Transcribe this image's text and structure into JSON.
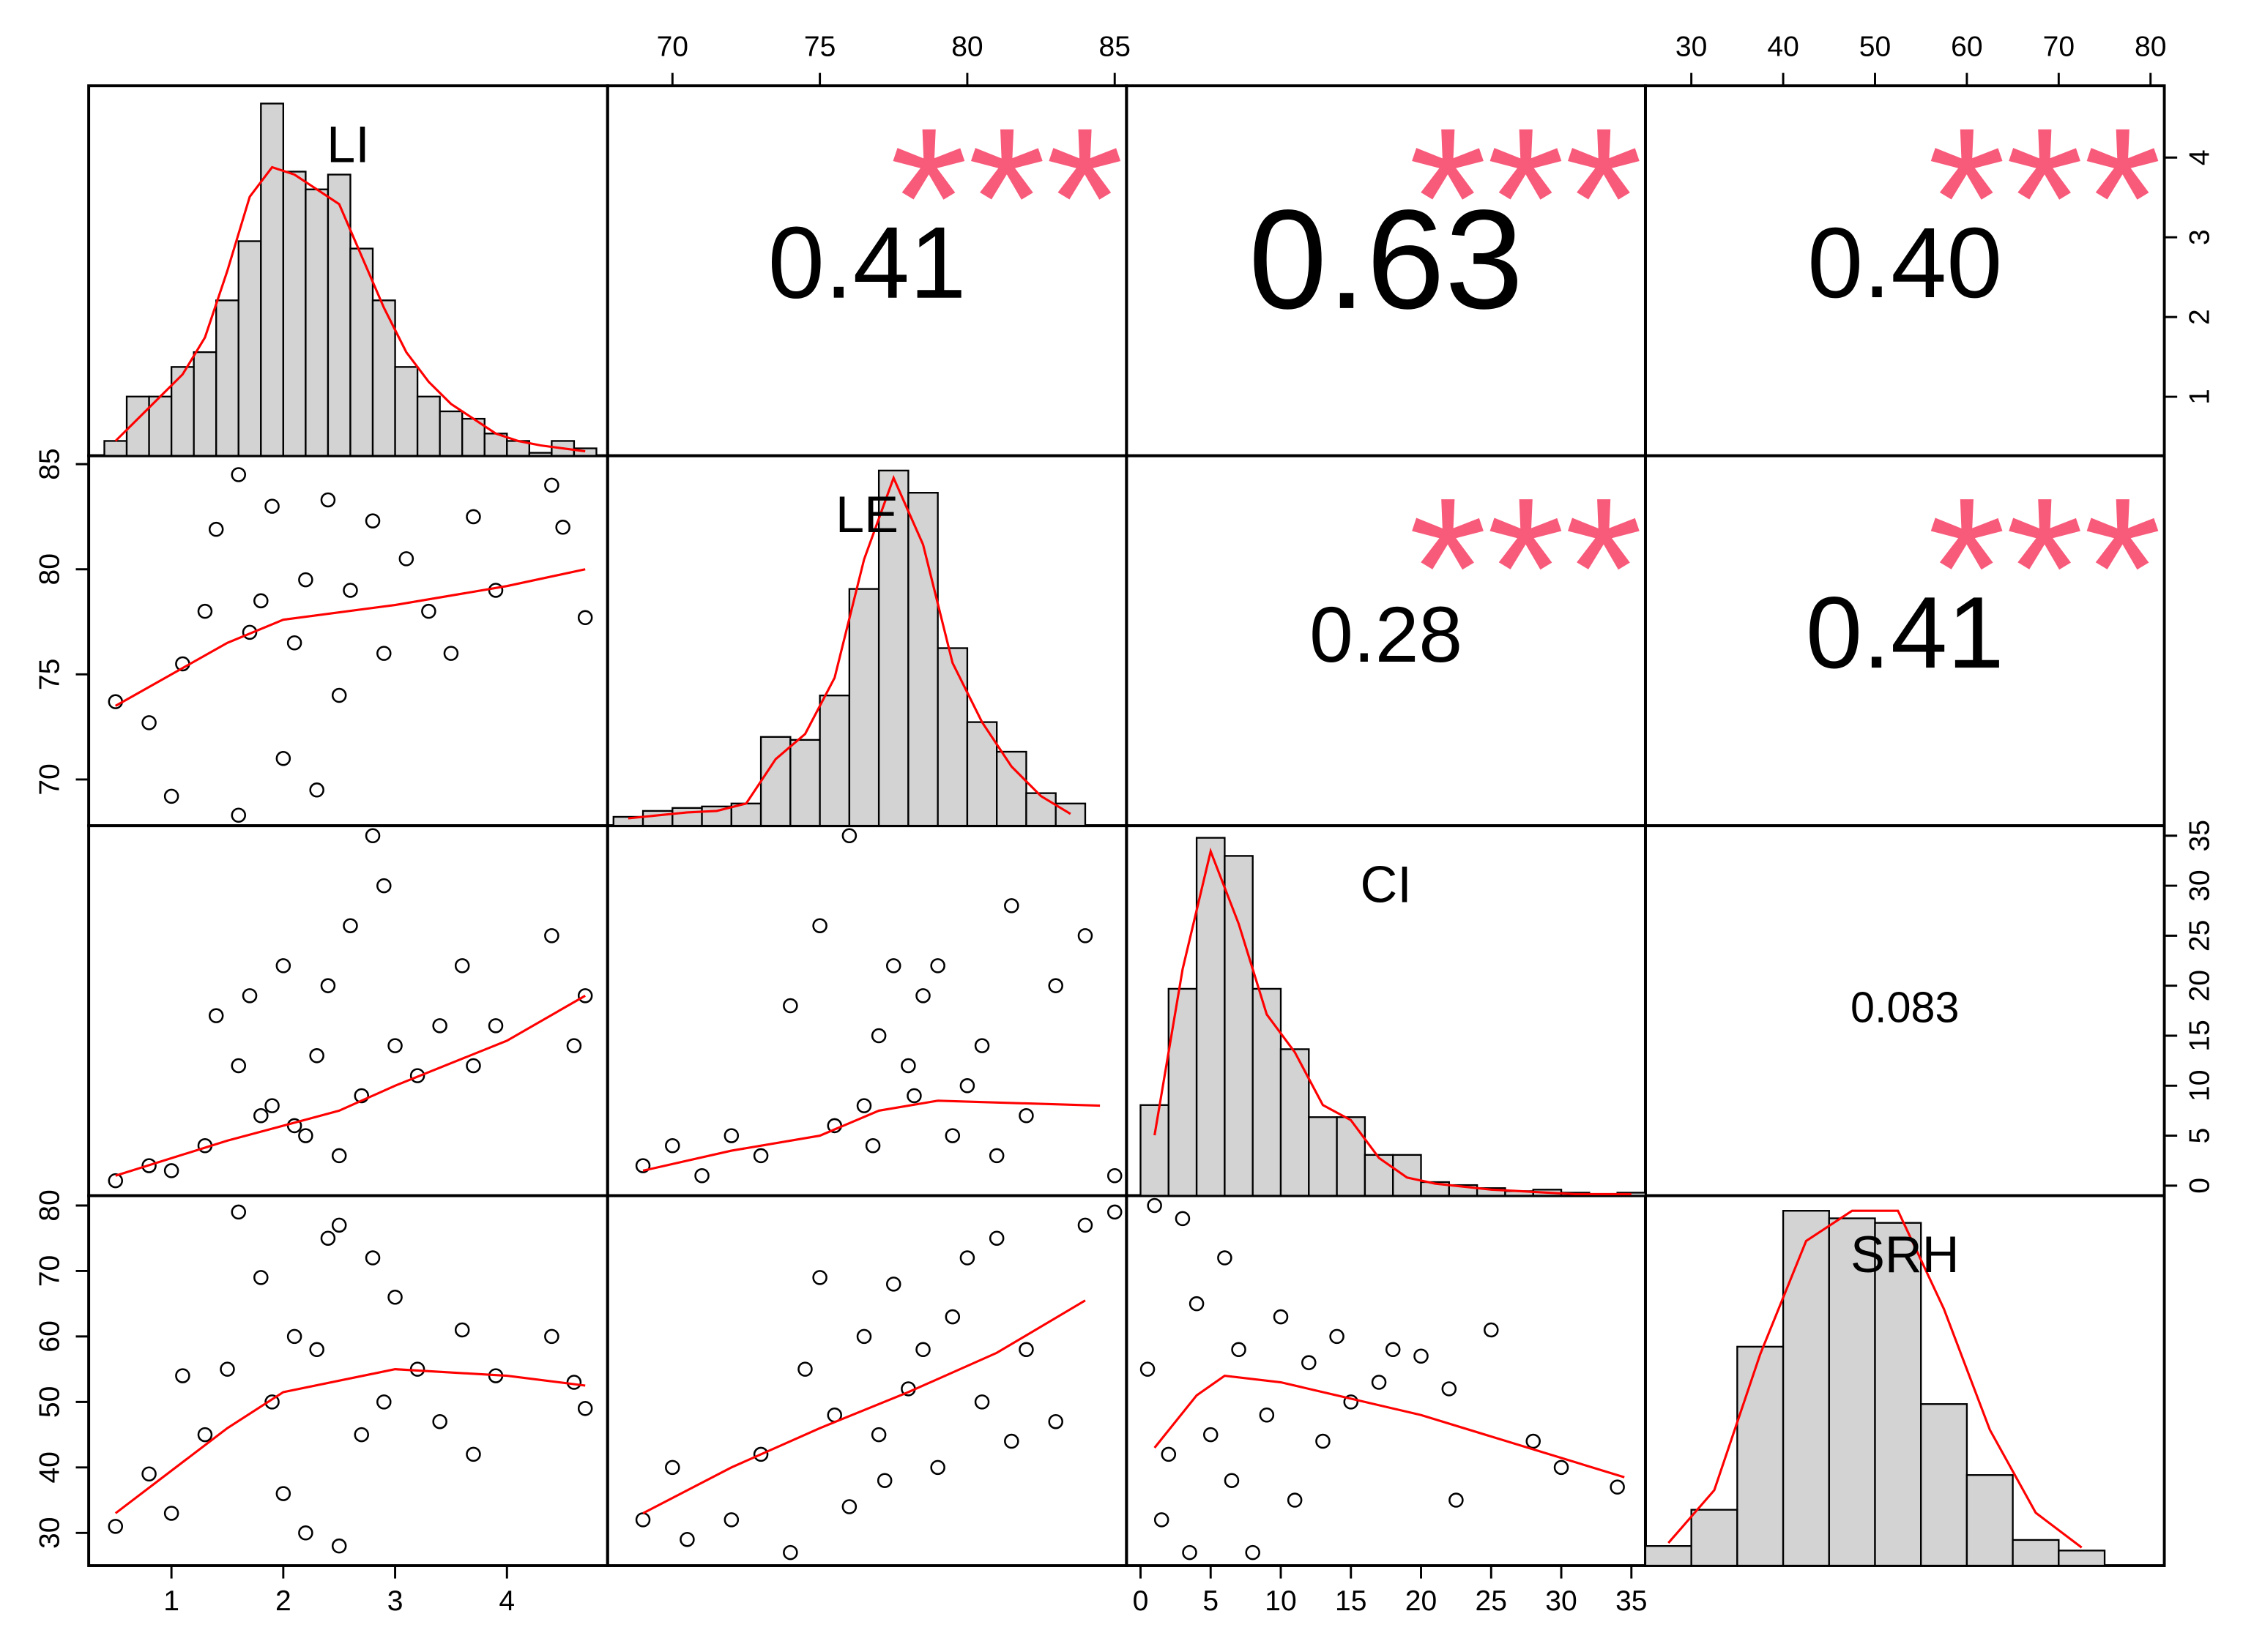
{
  "chart_data": {
    "type": "pairs",
    "variables": [
      "LI",
      "LE",
      "CI",
      "SRH"
    ],
    "axes": [
      {
        "lim": [
          0.26,
          4.9
        ],
        "ticks": [
          1,
          2,
          3,
          4
        ]
      },
      {
        "lim": [
          67.8,
          85.4
        ],
        "ticks": [
          70,
          75,
          80,
          85
        ]
      },
      {
        "lim": [
          -1,
          36
        ],
        "ticks": [
          0,
          5,
          10,
          15,
          20,
          25,
          30,
          35
        ]
      },
      {
        "lim": [
          25,
          81.5
        ],
        "ticks": [
          30,
          40,
          50,
          60,
          70,
          80
        ]
      }
    ],
    "hist_color": "#d3d3d3",
    "point_color": "#000000",
    "smooth_color": "#ff0000",
    "star_color": "#f85a7a",
    "histograms": [
      {
        "bins": [
          0.4,
          0.6,
          0.8,
          1.0,
          1.2,
          1.4,
          1.6,
          1.8,
          2.0,
          2.2,
          2.4,
          2.6,
          2.8,
          3.0,
          3.2,
          3.4,
          3.6,
          3.8,
          4.0,
          4.2,
          4.4,
          4.6,
          4.8
        ],
        "counts": [
          10,
          40,
          40,
          60,
          70,
          105,
          145,
          238,
          192,
          180,
          190,
          140,
          105,
          60,
          40,
          30,
          25,
          15,
          10,
          2,
          10,
          5
        ],
        "density_x": [
          0.5,
          0.7,
          0.9,
          1.1,
          1.3,
          1.5,
          1.7,
          1.9,
          2.1,
          2.3,
          2.5,
          2.7,
          2.9,
          3.1,
          3.3,
          3.5,
          3.7,
          3.9,
          4.1,
          4.3,
          4.5,
          4.7
        ],
        "density": [
          10,
          25,
          40,
          55,
          80,
          125,
          175,
          195,
          190,
          180,
          170,
          135,
          100,
          70,
          50,
          35,
          25,
          15,
          10,
          7,
          5,
          3
        ],
        "ylim": [
          0,
          250
        ]
      },
      {
        "bins": [
          68,
          69,
          70,
          71,
          72,
          73,
          74,
          75,
          76,
          77,
          78,
          79,
          80,
          81,
          82,
          83,
          84
        ],
        "counts": [
          6,
          10,
          12,
          13,
          15,
          60,
          58,
          88,
          160,
          240,
          225,
          120,
          70,
          50,
          22,
          15
        ],
        "density_x": [
          68.5,
          69.5,
          70.5,
          71.5,
          72.5,
          73.5,
          74.5,
          75.5,
          76.5,
          77.5,
          78.5,
          79.5,
          80.5,
          81.5,
          82.5,
          83.5
        ],
        "density": [
          5,
          7,
          9,
          10,
          15,
          45,
          62,
          100,
          180,
          235,
          190,
          110,
          70,
          40,
          20,
          8
        ],
        "ylim": [
          0,
          250
        ]
      },
      {
        "bins": [
          0,
          2,
          4,
          6,
          8,
          10,
          12,
          14,
          16,
          18,
          20,
          22,
          24,
          26,
          28,
          30,
          32,
          34,
          36
        ],
        "counts": [
          60,
          137,
          237,
          225,
          137,
          97,
          52,
          52,
          27,
          27,
          9,
          7,
          5,
          3,
          4,
          2,
          0,
          2
        ],
        "density_x": [
          1,
          3,
          5,
          7,
          9,
          11,
          13,
          15,
          17,
          19,
          21,
          23,
          25,
          27,
          29,
          31,
          33,
          35
        ],
        "density": [
          40,
          150,
          228,
          180,
          120,
          95,
          60,
          50,
          25,
          12,
          8,
          6,
          4,
          3,
          2,
          1,
          1,
          1
        ],
        "ylim": [
          0,
          245
        ]
      },
      {
        "bins": [
          25,
          30,
          35,
          40,
          45,
          50,
          55,
          60,
          65,
          70,
          75
        ],
        "counts": [
          13,
          37,
          145,
          235,
          230,
          227,
          107,
          60,
          17,
          10
        ],
        "density_x": [
          27.5,
          32.5,
          37.5,
          42.5,
          47.5,
          52.5,
          57.5,
          62.5,
          67.5,
          72.5
        ],
        "density": [
          15,
          50,
          140,
          215,
          235,
          235,
          170,
          90,
          35,
          12
        ],
        "ylim": [
          0,
          245
        ]
      }
    ],
    "scatter": [
      {
        "x": [
          0.5,
          0.8,
          1.0,
          1.1,
          1.3,
          1.4,
          1.6,
          1.7,
          1.9,
          2.0,
          2.1,
          2.3,
          2.4,
          2.5,
          2.6,
          2.8,
          2.9,
          3.1,
          3.3,
          3.5,
          3.7,
          3.9,
          4.4,
          4.5,
          4.7,
          1.6,
          2.2,
          1.8
        ],
        "y": [
          73.7,
          72.7,
          69.2,
          75.5,
          78,
          81.9,
          84.5,
          77,
          83,
          71,
          76.5,
          69.5,
          83.3,
          74,
          79,
          82.3,
          76,
          80.5,
          78,
          76,
          82.5,
          79,
          84,
          82,
          77.7,
          68.3,
          79.5,
          78.5
        ],
        "smooth_x": [
          0.5,
          1.5,
          2,
          3,
          4,
          4.7
        ],
        "smooth_y": [
          73.5,
          76.5,
          77.6,
          78.3,
          79.2,
          80
        ]
      },
      {
        "x": [
          0.5,
          0.8,
          1.0,
          1.3,
          1.4,
          1.6,
          1.7,
          1.9,
          2.0,
          2.1,
          2.3,
          2.4,
          2.5,
          2.6,
          2.7,
          2.8,
          2.9,
          3.0,
          3.2,
          3.4,
          3.6,
          3.7,
          3.9,
          4.4,
          4.6,
          4.7,
          2.2,
          1.8
        ],
        "y": [
          0.5,
          2,
          1.5,
          4,
          17,
          12,
          19,
          8,
          22,
          6,
          13,
          20,
          3,
          26,
          9,
          35,
          30,
          14,
          11,
          16,
          22,
          12,
          16,
          25,
          14,
          19,
          5,
          7
        ],
        "smooth_x": [
          0.5,
          1.5,
          2.5,
          3,
          4,
          4.7
        ],
        "smooth_y": [
          1,
          4.5,
          7.5,
          10,
          14.5,
          19
        ]
      },
      {
        "x": [
          69,
          70,
          71,
          72,
          73,
          74,
          75,
          75.5,
          76,
          76.5,
          77,
          77.5,
          78,
          78.5,
          79,
          79.5,
          80,
          80.5,
          81,
          81.5,
          82,
          83,
          84,
          85,
          76.8,
          78.2
        ],
        "y": [
          2,
          4,
          1,
          5,
          3,
          18,
          26,
          6,
          35,
          8,
          15,
          22,
          12,
          19,
          22,
          5,
          10,
          14,
          3,
          28,
          7,
          20,
          25,
          1,
          4,
          9
        ],
        "smooth_x": [
          69,
          72,
          75,
          77,
          79,
          84.5
        ],
        "smooth_y": [
          1.5,
          3.5,
          5,
          7.5,
          8.5,
          8
        ]
      },
      {
        "x": [
          0.5,
          0.8,
          1.0,
          1.1,
          1.3,
          1.5,
          1.6,
          1.8,
          1.9,
          2.0,
          2.1,
          2.3,
          2.4,
          2.5,
          2.5,
          2.7,
          2.8,
          2.9,
          3.0,
          3.2,
          3.4,
          3.6,
          3.7,
          3.9,
          4.4,
          4.6,
          4.7,
          2.2
        ],
        "y": [
          31,
          39,
          33,
          54,
          45,
          55,
          79,
          69,
          50,
          36,
          60,
          58,
          75,
          77,
          28,
          45,
          72,
          50,
          66,
          55,
          47,
          61,
          42,
          54,
          60,
          53,
          49,
          30
        ],
        "smooth_x": [
          0.5,
          1.5,
          2,
          3,
          4,
          4.7
        ],
        "smooth_y": [
          33,
          46,
          51.5,
          55,
          54,
          52.5
        ]
      },
      {
        "x": [
          69,
          70,
          70.5,
          72,
          73,
          74,
          74.5,
          75,
          75.5,
          76,
          76.5,
          77,
          77.5,
          78,
          78.5,
          79,
          79.5,
          80,
          80.5,
          81,
          81.5,
          82,
          83,
          84,
          85,
          77.2
        ],
        "y": [
          32,
          40,
          29,
          32,
          42,
          27,
          55,
          69,
          48,
          34,
          60,
          45,
          68,
          52,
          58,
          40,
          63,
          72,
          50,
          75,
          44,
          58,
          47,
          77,
          79,
          38
        ],
        "smooth_x": [
          69,
          72,
          75,
          78,
          81,
          84
        ],
        "smooth_y": [
          33,
          40,
          46,
          51.5,
          57.5,
          65.5
        ]
      },
      {
        "x": [
          0.5,
          1,
          1.5,
          2,
          3,
          3.5,
          4,
          5,
          6,
          6.5,
          7,
          8,
          9,
          10,
          11,
          12,
          13,
          14,
          15,
          17,
          18,
          20,
          22,
          22.5,
          25,
          28,
          30,
          34
        ],
        "y": [
          55,
          80,
          32,
          42,
          78,
          27,
          65,
          45,
          72,
          38,
          58,
          27,
          48,
          63,
          35,
          56,
          44,
          60,
          50,
          53,
          58,
          57,
          52,
          35,
          61,
          44,
          40,
          37
        ],
        "smooth_x": [
          1,
          4,
          6,
          10,
          20,
          34.5
        ],
        "smooth_y": [
          43,
          51,
          54,
          53,
          48,
          38.5
        ]
      }
    ],
    "correlations": [
      {
        "value": 0.41,
        "stars": "***"
      },
      {
        "value": 0.63,
        "stars": "***"
      },
      {
        "value": 0.4,
        "value_label": "0.40",
        "stars": "***"
      },
      {
        "value": 0.28,
        "stars": "***"
      },
      {
        "value": 0.41,
        "stars": "***"
      },
      {
        "value": 0.083
      }
    ]
  }
}
